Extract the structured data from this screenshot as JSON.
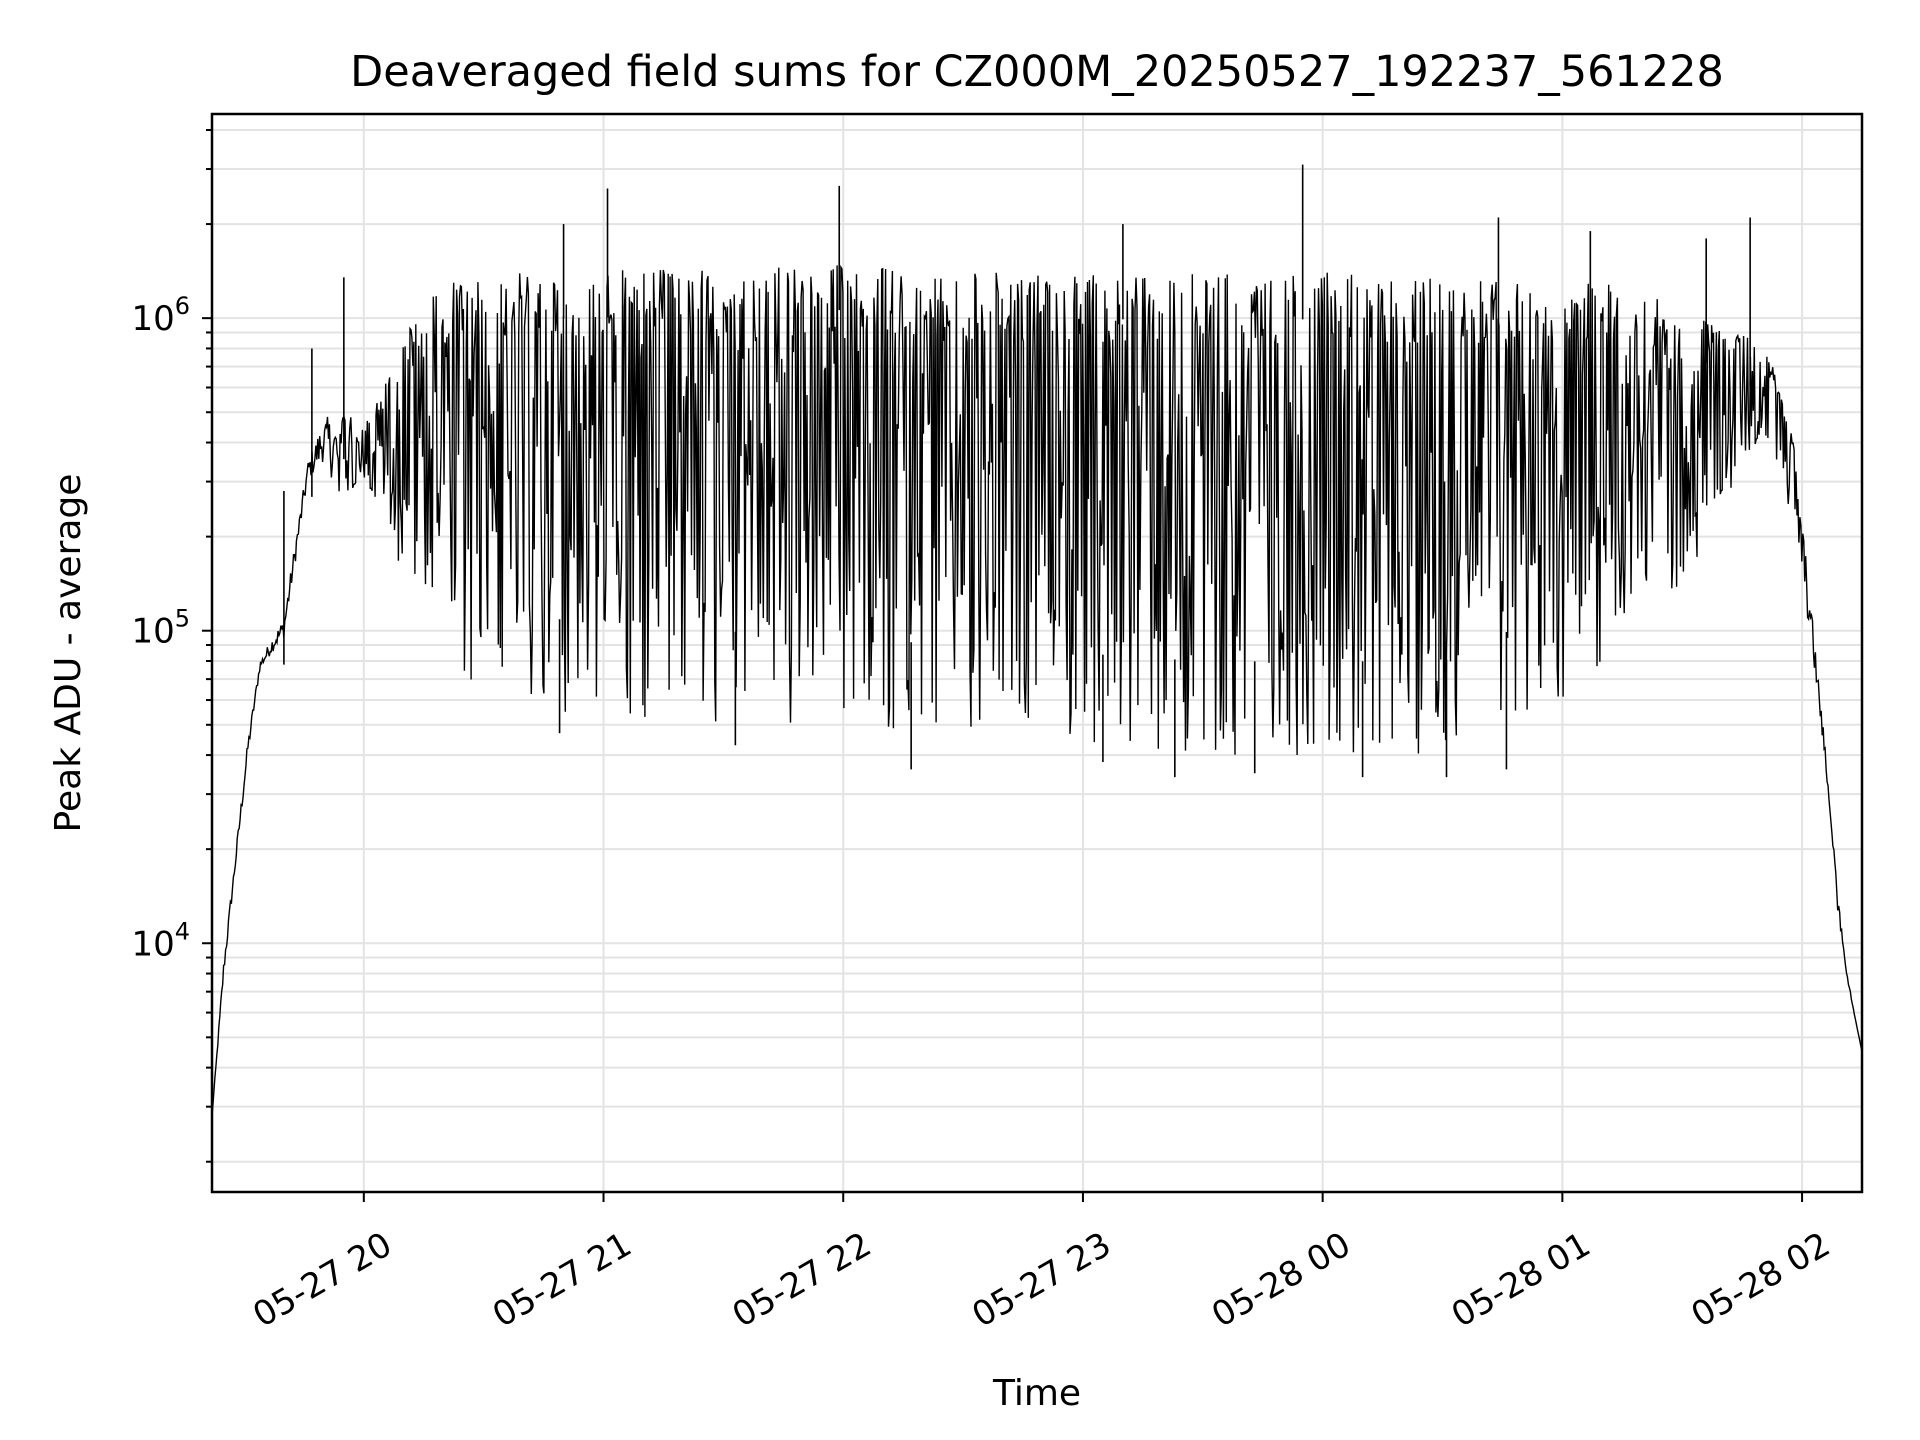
{
  "chart_data": {
    "type": "line",
    "title": "Deaveraged field sums for CZ000M_20250527_192237_561228",
    "xlabel": "Time",
    "ylabel": "Peak ADU - average",
    "yscale": "log",
    "ylim": [
      1600,
      4500000
    ],
    "xlim": [
      "2025-05-27 19:22",
      "2025-05-28 02:15"
    ],
    "grid": true,
    "line_color": "#000000",
    "x_ticks": [
      {
        "t": "2025-05-27 20:00",
        "label": "05-27 20"
      },
      {
        "t": "2025-05-27 21:00",
        "label": "05-27 21"
      },
      {
        "t": "2025-05-27 22:00",
        "label": "05-27 22"
      },
      {
        "t": "2025-05-27 23:00",
        "label": "05-27 23"
      },
      {
        "t": "2025-05-28 00:00",
        "label": "05-28 00"
      },
      {
        "t": "2025-05-28 01:00",
        "label": "05-28 01"
      },
      {
        "t": "2025-05-28 02:00",
        "label": "05-28 02"
      }
    ],
    "y_ticks": [
      {
        "value": 10000,
        "base": "10",
        "exp": "4"
      },
      {
        "value": 100000,
        "base": "10",
        "exp": "5"
      },
      {
        "value": 1000000,
        "base": "10",
        "exp": "6"
      }
    ],
    "envelope": {
      "upper": [
        [
          "2025-05-27 19:22",
          2800
        ],
        [
          "2025-05-27 19:25",
          9000
        ],
        [
          "2025-05-27 19:28",
          20000
        ],
        [
          "2025-05-27 19:31",
          45000
        ],
        [
          "2025-05-27 19:34",
          80000
        ],
        [
          "2025-05-27 19:37",
          95000
        ],
        [
          "2025-05-27 19:40",
          110000
        ],
        [
          "2025-05-27 19:43",
          200000
        ],
        [
          "2025-05-27 19:46",
          350000
        ],
        [
          "2025-05-27 19:50",
          480000
        ],
        [
          "2025-05-27 19:55",
          500000
        ],
        [
          "2025-05-27 20:00",
          450000
        ],
        [
          "2025-05-27 20:05",
          600000
        ],
        [
          "2025-05-27 20:12",
          1000000
        ],
        [
          "2025-05-27 20:20",
          1300000
        ],
        [
          "2025-05-27 20:40",
          1400000
        ],
        [
          "2025-05-27 21:30",
          1450000
        ],
        [
          "2025-05-27 22:00",
          1500000
        ],
        [
          "2025-05-27 22:30",
          1400000
        ],
        [
          "2025-05-27 23:30",
          1400000
        ],
        [
          "2025-05-28 00:30",
          1400000
        ],
        [
          "2025-05-28 01:10",
          1300000
        ],
        [
          "2025-05-28 01:30",
          1100000
        ],
        [
          "2025-05-28 01:45",
          900000
        ],
        [
          "2025-05-28 01:52",
          750000
        ],
        [
          "2025-05-28 01:58",
          400000
        ],
        [
          "2025-05-28 02:02",
          130000
        ],
        [
          "2025-05-28 02:06",
          40000
        ],
        [
          "2025-05-28 02:09",
          12000
        ],
        [
          "2025-05-28 02:13",
          6000
        ],
        [
          "2025-05-28 02:15",
          4500
        ]
      ],
      "lower": [
        [
          "2025-05-27 19:22",
          2800
        ],
        [
          "2025-05-27 19:25",
          8000
        ],
        [
          "2025-05-27 19:28",
          18000
        ],
        [
          "2025-05-27 19:31",
          40000
        ],
        [
          "2025-05-27 19:34",
          75000
        ],
        [
          "2025-05-27 19:37",
          85000
        ],
        [
          "2025-05-27 19:40",
          95000
        ],
        [
          "2025-05-27 19:43",
          170000
        ],
        [
          "2025-05-27 19:46",
          300000
        ],
        [
          "2025-05-27 19:50",
          350000
        ],
        [
          "2025-05-27 19:55",
          250000
        ],
        [
          "2025-05-27 20:00",
          300000
        ],
        [
          "2025-05-27 20:10",
          150000
        ],
        [
          "2025-05-27 20:25",
          70000
        ],
        [
          "2025-05-27 20:45",
          55000
        ],
        [
          "2025-05-27 21:30",
          50000
        ],
        [
          "2025-05-27 22:30",
          45000
        ],
        [
          "2025-05-27 23:30",
          40000
        ],
        [
          "2025-05-28 00:30",
          40000
        ],
        [
          "2025-05-28 01:00",
          60000
        ],
        [
          "2025-05-28 01:20",
          100000
        ],
        [
          "2025-05-28 01:40",
          200000
        ],
        [
          "2025-05-28 01:50",
          450000
        ],
        [
          "2025-05-28 01:55",
          300000
        ],
        [
          "2025-05-28 02:00",
          150000
        ],
        [
          "2025-05-28 02:04",
          60000
        ],
        [
          "2025-05-28 02:08",
          20000
        ],
        [
          "2025-05-28 02:11",
          8000
        ],
        [
          "2025-05-28 02:15",
          4500
        ]
      ]
    },
    "spikes": [
      [
        "2025-05-27 19:40",
        280000
      ],
      [
        "2025-05-27 19:47",
        800000
      ],
      [
        "2025-05-27 19:55",
        1350000
      ],
      [
        "2025-05-27 20:50",
        2000000
      ],
      [
        "2025-05-27 21:01",
        2600000
      ],
      [
        "2025-05-27 21:59",
        2650000
      ],
      [
        "2025-05-27 23:10",
        2000000
      ],
      [
        "2025-05-27 23:55",
        3100000
      ],
      [
        "2025-05-28 00:44",
        2100000
      ],
      [
        "2025-05-28 01:07",
        1900000
      ],
      [
        "2025-05-28 01:47",
        2100000
      ],
      [
        "2025-05-28 01:36",
        1800000
      ]
    ],
    "dips": [
      [
        "2025-05-27 21:33",
        43000
      ],
      [
        "2025-05-27 22:17",
        36000
      ],
      [
        "2025-05-27 23:05",
        38000
      ],
      [
        "2025-05-27 23:23",
        34000
      ],
      [
        "2025-05-27 23:43",
        35000
      ],
      [
        "2025-05-28 00:10",
        34000
      ],
      [
        "2025-05-28 00:31",
        34000
      ],
      [
        "2025-05-28 00:46",
        36000
      ],
      [
        "2025-05-27 20:49",
        47000
      ]
    ]
  }
}
